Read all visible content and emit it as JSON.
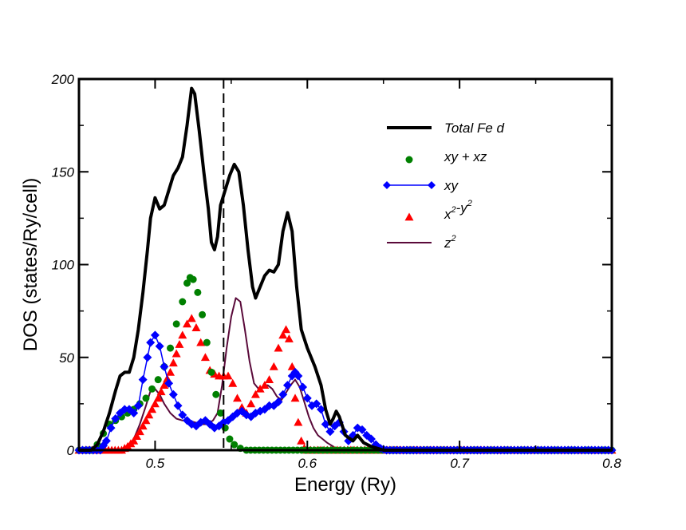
{
  "chart_data": {
    "type": "line",
    "title": "",
    "xlabel": "Energy (Ry)",
    "ylabel": "DOS (states/Ry/cell)",
    "xlim": [
      0.45,
      0.8
    ],
    "ylim": [
      0,
      200
    ],
    "x_ticks": [
      0.5,
      0.6,
      0.7,
      0.8
    ],
    "x_tick_labels": [
      "0.5",
      "0.6",
      "0.7",
      "0.8"
    ],
    "y_ticks": [
      0,
      50,
      100,
      150,
      200
    ],
    "y_tick_labels": [
      "0",
      "50",
      "100",
      "150",
      "200"
    ],
    "fermi_level": 0.545,
    "grid": false,
    "legend_position": "top-right",
    "series": [
      {
        "name": "Total Fe d",
        "label_base": "Total Fe d",
        "label_sup1": "",
        "label_mid": "",
        "label_sup2": "",
        "style": "line",
        "color": "#000000",
        "marker": "none",
        "points": [
          [
            0.45,
            0
          ],
          [
            0.458,
            0
          ],
          [
            0.462,
            3
          ],
          [
            0.466,
            10
          ],
          [
            0.47,
            20
          ],
          [
            0.474,
            32
          ],
          [
            0.477,
            40
          ],
          [
            0.48,
            42
          ],
          [
            0.483,
            42
          ],
          [
            0.486,
            50
          ],
          [
            0.489,
            65
          ],
          [
            0.492,
            85
          ],
          [
            0.495,
            108
          ],
          [
            0.497,
            125
          ],
          [
            0.5,
            136
          ],
          [
            0.503,
            130
          ],
          [
            0.506,
            132
          ],
          [
            0.509,
            140
          ],
          [
            0.512,
            148
          ],
          [
            0.515,
            152
          ],
          [
            0.518,
            158
          ],
          [
            0.521,
            175
          ],
          [
            0.524,
            195
          ],
          [
            0.526,
            192
          ],
          [
            0.529,
            172
          ],
          [
            0.532,
            150
          ],
          [
            0.535,
            130
          ],
          [
            0.537,
            112
          ],
          [
            0.539,
            108
          ],
          [
            0.541,
            115
          ],
          [
            0.543,
            132
          ],
          [
            0.546,
            140
          ],
          [
            0.549,
            148
          ],
          [
            0.552,
            154
          ],
          [
            0.555,
            150
          ],
          [
            0.558,
            132
          ],
          [
            0.561,
            108
          ],
          [
            0.564,
            88
          ],
          [
            0.566,
            82
          ],
          [
            0.569,
            88
          ],
          [
            0.572,
            94
          ],
          [
            0.575,
            97
          ],
          [
            0.578,
            96
          ],
          [
            0.581,
            100
          ],
          [
            0.584,
            118
          ],
          [
            0.587,
            128
          ],
          [
            0.59,
            118
          ],
          [
            0.593,
            88
          ],
          [
            0.596,
            65
          ],
          [
            0.6,
            55
          ],
          [
            0.605,
            45
          ],
          [
            0.609,
            35
          ],
          [
            0.612,
            22
          ],
          [
            0.615,
            14
          ],
          [
            0.617,
            17
          ],
          [
            0.619,
            21
          ],
          [
            0.621,
            18
          ],
          [
            0.625,
            8
          ],
          [
            0.63,
            5
          ],
          [
            0.633,
            8
          ],
          [
            0.637,
            4
          ],
          [
            0.642,
            2
          ],
          [
            0.648,
            0.5
          ],
          [
            0.65,
            0
          ],
          [
            0.8,
            0
          ]
        ]
      },
      {
        "name": "xy + xz",
        "label_base": "xy + xz",
        "label_sup1": "",
        "label_mid": "",
        "label_sup2": "",
        "style": "markers",
        "color": "#008000",
        "marker": "circle",
        "points": [
          [
            0.45,
            0
          ],
          [
            0.458,
            0
          ],
          [
            0.462,
            3
          ],
          [
            0.466,
            9
          ],
          [
            0.47,
            14
          ],
          [
            0.474,
            16
          ],
          [
            0.478,
            18
          ],
          [
            0.482,
            20
          ],
          [
            0.486,
            22
          ],
          [
            0.49,
            25
          ],
          [
            0.494,
            28
          ],
          [
            0.498,
            33
          ],
          [
            0.502,
            38
          ],
          [
            0.506,
            45
          ],
          [
            0.51,
            55
          ],
          [
            0.514,
            68
          ],
          [
            0.518,
            80
          ],
          [
            0.521,
            90
          ],
          [
            0.523,
            93
          ],
          [
            0.525,
            92
          ],
          [
            0.528,
            85
          ],
          [
            0.531,
            73
          ],
          [
            0.534,
            58
          ],
          [
            0.537,
            42
          ],
          [
            0.54,
            30
          ],
          [
            0.543,
            20
          ],
          [
            0.546,
            12
          ],
          [
            0.549,
            6
          ],
          [
            0.552,
            3
          ],
          [
            0.556,
            1
          ],
          [
            0.56,
            0
          ],
          [
            0.8,
            0
          ]
        ]
      },
      {
        "name": "xy",
        "label_base": "xy",
        "label_sup1": "",
        "label_mid": "",
        "label_sup2": "",
        "style": "line-markers",
        "color": "#0000ff",
        "marker": "diamond",
        "points": [
          [
            0.45,
            0
          ],
          [
            0.464,
            0
          ],
          [
            0.468,
            5
          ],
          [
            0.471,
            12
          ],
          [
            0.474,
            17
          ],
          [
            0.477,
            20
          ],
          [
            0.48,
            22
          ],
          [
            0.483,
            22
          ],
          [
            0.486,
            20
          ],
          [
            0.489,
            24
          ],
          [
            0.492,
            38
          ],
          [
            0.495,
            50
          ],
          [
            0.497,
            58
          ],
          [
            0.5,
            62
          ],
          [
            0.503,
            56
          ],
          [
            0.506,
            45
          ],
          [
            0.509,
            36
          ],
          [
            0.512,
            30
          ],
          [
            0.515,
            24
          ],
          [
            0.518,
            19
          ],
          [
            0.521,
            16
          ],
          [
            0.524,
            14
          ],
          [
            0.527,
            13
          ],
          [
            0.53,
            15
          ],
          [
            0.533,
            16
          ],
          [
            0.536,
            14
          ],
          [
            0.539,
            12
          ],
          [
            0.542,
            13
          ],
          [
            0.545,
            15
          ],
          [
            0.548,
            16
          ],
          [
            0.551,
            18
          ],
          [
            0.554,
            20
          ],
          [
            0.557,
            21
          ],
          [
            0.56,
            19
          ],
          [
            0.563,
            18
          ],
          [
            0.566,
            20
          ],
          [
            0.569,
            21
          ],
          [
            0.572,
            22
          ],
          [
            0.575,
            24
          ],
          [
            0.578,
            24
          ],
          [
            0.581,
            26
          ],
          [
            0.584,
            30
          ],
          [
            0.587,
            35
          ],
          [
            0.59,
            40
          ],
          [
            0.592,
            42
          ],
          [
            0.594,
            40
          ],
          [
            0.597,
            34
          ],
          [
            0.6,
            28
          ],
          [
            0.603,
            24
          ],
          [
            0.606,
            25
          ],
          [
            0.609,
            22
          ],
          [
            0.612,
            14
          ],
          [
            0.615,
            10
          ],
          [
            0.618,
            13
          ],
          [
            0.621,
            15
          ],
          [
            0.624,
            10
          ],
          [
            0.627,
            5
          ],
          [
            0.63,
            8
          ],
          [
            0.633,
            12
          ],
          [
            0.636,
            11
          ],
          [
            0.639,
            8
          ],
          [
            0.642,
            6
          ],
          [
            0.645,
            3
          ],
          [
            0.648,
            1
          ],
          [
            0.652,
            0
          ],
          [
            0.8,
            0
          ]
        ]
      },
      {
        "name": "x2-y2",
        "label_base": "x",
        "label_sup1": "2",
        "label_mid": "-y",
        "label_sup2": "2",
        "style": "markers",
        "color": "#ff0000",
        "marker": "triangle",
        "points": [
          [
            0.45,
            0
          ],
          [
            0.478,
            0
          ],
          [
            0.482,
            2
          ],
          [
            0.486,
            5
          ],
          [
            0.49,
            10
          ],
          [
            0.494,
            16
          ],
          [
            0.498,
            22
          ],
          [
            0.502,
            28
          ],
          [
            0.506,
            35
          ],
          [
            0.51,
            42
          ],
          [
            0.514,
            52
          ],
          [
            0.518,
            62
          ],
          [
            0.521,
            68
          ],
          [
            0.524,
            71
          ],
          [
            0.527,
            66
          ],
          [
            0.53,
            58
          ],
          [
            0.533,
            50
          ],
          [
            0.536,
            43
          ],
          [
            0.539,
            41
          ],
          [
            0.542,
            40
          ],
          [
            0.545,
            40
          ],
          [
            0.548,
            40
          ],
          [
            0.551,
            36
          ],
          [
            0.554,
            28
          ],
          [
            0.557,
            23
          ],
          [
            0.56,
            20
          ],
          [
            0.563,
            25
          ],
          [
            0.566,
            30
          ],
          [
            0.569,
            33
          ],
          [
            0.572,
            35
          ],
          [
            0.575,
            38
          ],
          [
            0.578,
            45
          ],
          [
            0.581,
            55
          ],
          [
            0.584,
            62
          ],
          [
            0.586,
            65
          ],
          [
            0.588,
            60
          ],
          [
            0.59,
            45
          ],
          [
            0.592,
            28
          ],
          [
            0.594,
            15
          ],
          [
            0.596,
            5
          ],
          [
            0.598,
            1
          ],
          [
            0.6,
            0
          ],
          [
            0.8,
            0
          ]
        ]
      },
      {
        "name": "z2",
        "label_base": "z",
        "label_sup1": "2",
        "label_mid": "",
        "label_sup2": "",
        "style": "line",
        "color": "#5a0a3a",
        "marker": "none",
        "points": [
          [
            0.45,
            0
          ],
          [
            0.478,
            0
          ],
          [
            0.482,
            2
          ],
          [
            0.486,
            6
          ],
          [
            0.49,
            14
          ],
          [
            0.494,
            24
          ],
          [
            0.497,
            32
          ],
          [
            0.5,
            33
          ],
          [
            0.503,
            30
          ],
          [
            0.506,
            25
          ],
          [
            0.51,
            20
          ],
          [
            0.514,
            17
          ],
          [
            0.518,
            16
          ],
          [
            0.522,
            16
          ],
          [
            0.526,
            15
          ],
          [
            0.53,
            14
          ],
          [
            0.534,
            14
          ],
          [
            0.538,
            16
          ],
          [
            0.541,
            20
          ],
          [
            0.544,
            35
          ],
          [
            0.547,
            55
          ],
          [
            0.55,
            72
          ],
          [
            0.553,
            82
          ],
          [
            0.556,
            80
          ],
          [
            0.559,
            65
          ],
          [
            0.562,
            48
          ],
          [
            0.565,
            36
          ],
          [
            0.568,
            33
          ],
          [
            0.571,
            34
          ],
          [
            0.574,
            35
          ],
          [
            0.577,
            33
          ],
          [
            0.58,
            29
          ],
          [
            0.583,
            27
          ],
          [
            0.586,
            31
          ],
          [
            0.589,
            35
          ],
          [
            0.592,
            38
          ],
          [
            0.595,
            34
          ],
          [
            0.598,
            26
          ],
          [
            0.601,
            18
          ],
          [
            0.604,
            12
          ],
          [
            0.607,
            8
          ],
          [
            0.61,
            6
          ],
          [
            0.613,
            4
          ],
          [
            0.617,
            2
          ],
          [
            0.62,
            0
          ],
          [
            0.8,
            0
          ]
        ]
      }
    ]
  }
}
